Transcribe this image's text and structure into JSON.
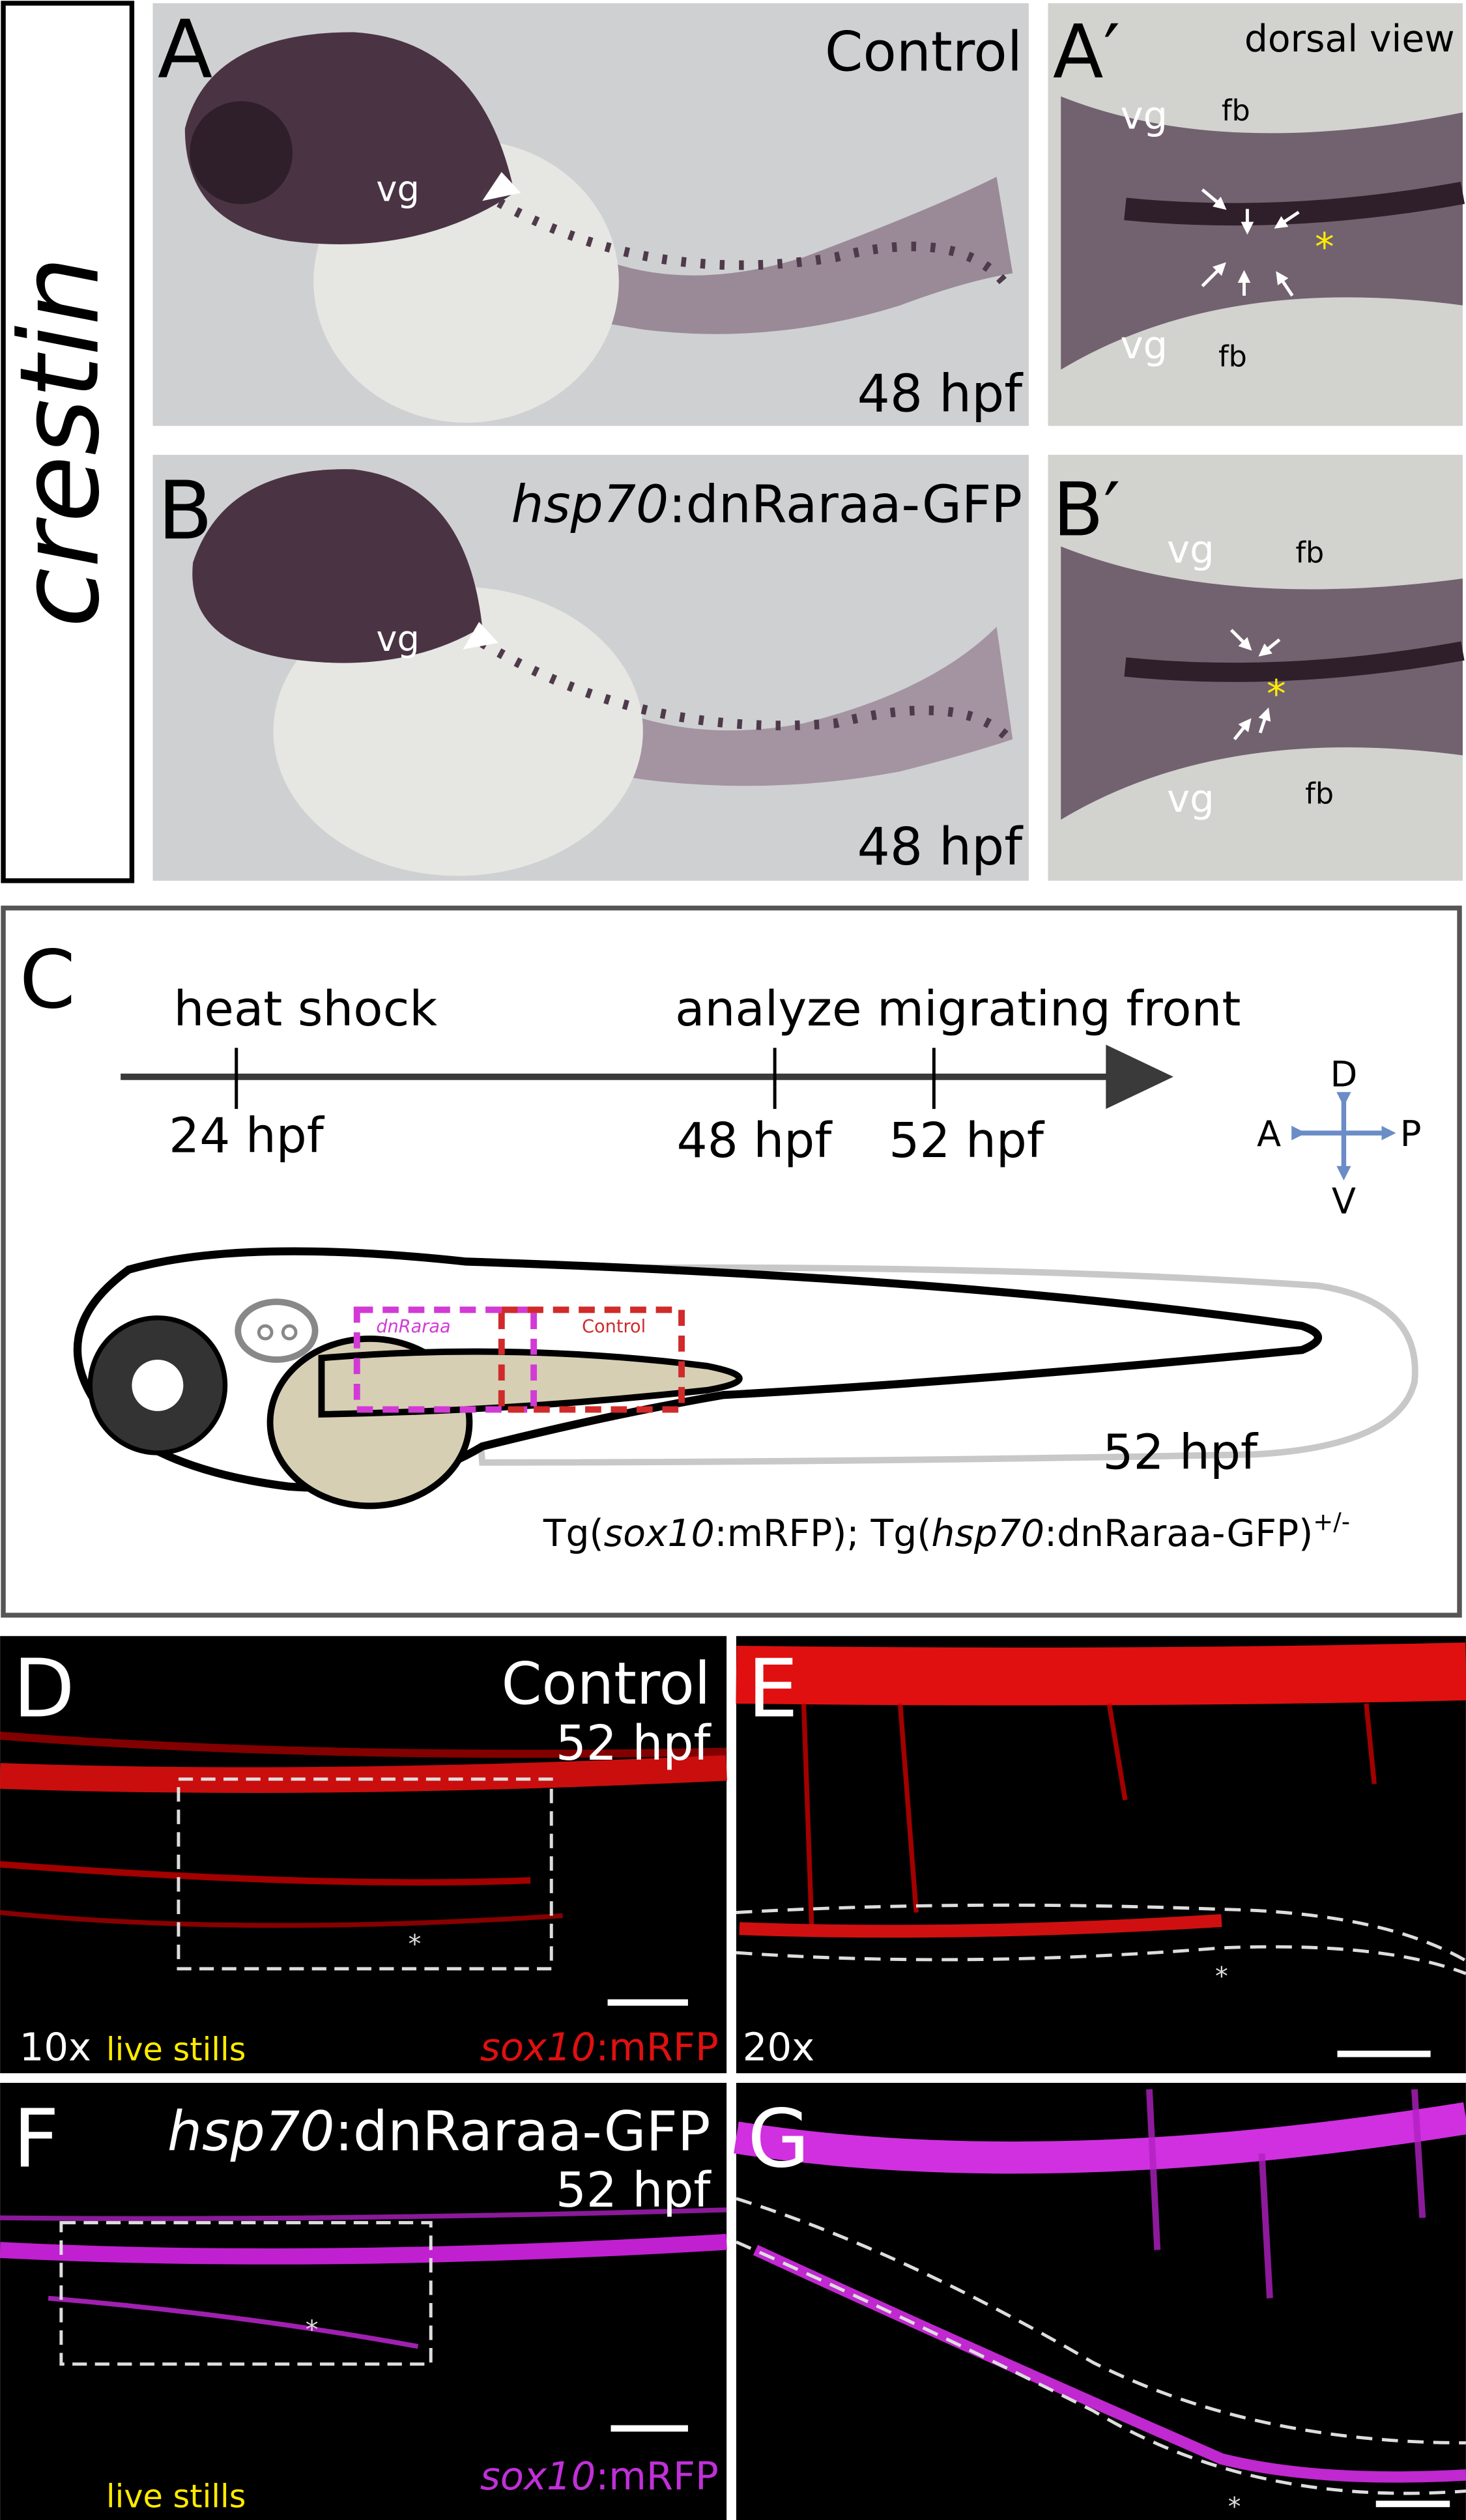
{
  "side_label": "crestin",
  "panel_a": {
    "letter": "A",
    "condition": "Control",
    "vg": "vg",
    "stage": "48 hpf"
  },
  "panel_a_prime": {
    "letter": "A′",
    "view": "dorsal view",
    "vg_top": "vg",
    "fb_top": "fb",
    "vg_bottom": "vg",
    "fb_bottom": "fb",
    "asterisk": "*"
  },
  "panel_b": {
    "letter": "B",
    "condition": [
      "hsp70",
      ":dnRaraa-GFP"
    ],
    "vg": "vg",
    "stage": "48 hpf"
  },
  "panel_b_prime": {
    "letter": "B′",
    "vg_top": "vg",
    "fb_top": "fb",
    "vg_bottom": "vg",
    "fb_bottom": "fb",
    "asterisk": "*"
  },
  "panel_c": {
    "letter": "C",
    "timeline": {
      "event_1": "heat shock",
      "event_2": "analyze migrating front",
      "ticks": [
        "24 hpf",
        "48 hpf",
        "52 hpf"
      ]
    },
    "compass": {
      "dorsal": "D",
      "ventral": "V",
      "anterior": "A",
      "posterior": "P"
    },
    "boxes": {
      "dnraraa": "dnRaraa",
      "control": "Control"
    },
    "stage": "52 hpf",
    "genotype": [
      "Tg(",
      "sox10",
      ":mRFP); Tg(",
      "hsp70",
      ":dnRaraa-GFP)",
      "+/-"
    ]
  },
  "panel_d": {
    "letter": "D",
    "condition": "Control",
    "stage": "52 hpf",
    "magnification": "10x",
    "note": "live stills",
    "marker": [
      "sox10",
      ":mRFP"
    ],
    "asterisk": "*"
  },
  "panel_e": {
    "letter": "E",
    "magnification": "20x",
    "asterisk": "*"
  },
  "panel_f": {
    "letter": "F",
    "condition": [
      "hsp70",
      ":dnRaraa-GFP"
    ],
    "stage": "52 hpf",
    "note": "live stills",
    "marker": [
      "sox10",
      ":mRFP"
    ],
    "asterisk": "*"
  },
  "panel_g": {
    "letter": "G",
    "asterisk": "*"
  }
}
